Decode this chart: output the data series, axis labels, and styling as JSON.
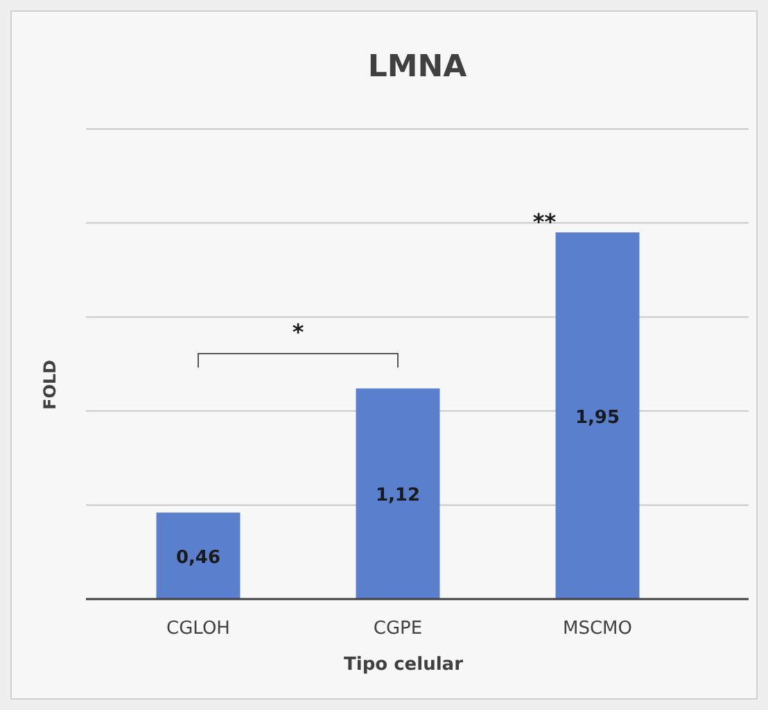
{
  "chart_data": {
    "type": "bar",
    "title": "LMNA",
    "xlabel": "Tipo celular",
    "ylabel": "FOLD",
    "categories": [
      "CGLOH",
      "CGPE",
      "MSCMO"
    ],
    "values": [
      0.46,
      1.12,
      1.95
    ],
    "value_labels": [
      "0,46",
      "1,12",
      "1,95"
    ],
    "color": "#5a7fcd",
    "ylim": [
      0,
      2.5
    ],
    "yticks": [
      {
        "value": 0,
        "label": null
      },
      {
        "value": 0.5,
        "label": null
      },
      {
        "value": 1,
        "label": null
      },
      {
        "value": 1.5,
        "label": null
      },
      {
        "value": 2,
        "label": null
      },
      {
        "value": 2.5,
        "label": null
      }
    ],
    "tick_labels": "x",
    "grid": "y",
    "annotations": [
      "*",
      "**"
    ]
  }
}
